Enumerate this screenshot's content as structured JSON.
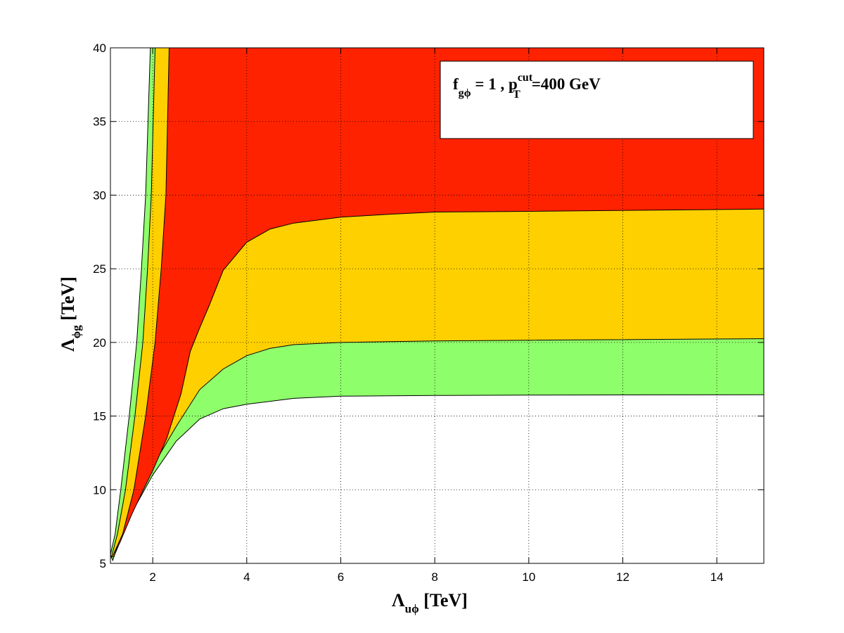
{
  "chart_data": {
    "type": "area",
    "title": "",
    "xlabel": {
      "main": "Λ",
      "sub": "uϕ",
      "unit": " [TeV]"
    },
    "ylabel": {
      "main": "Λ",
      "sub": "ϕg",
      "unit": " [TeV]"
    },
    "xlim": [
      1.1,
      15
    ],
    "ylim": [
      5,
      40
    ],
    "x_ticks": [
      2,
      4,
      6,
      8,
      10,
      12,
      14
    ],
    "y_ticks": [
      5,
      10,
      15,
      20,
      25,
      30,
      35,
      40
    ],
    "grid": "dotted",
    "annotation": {
      "f": "f",
      "f_sub": "gϕ",
      "eq": " = 1 , p",
      "p_sup": "cut",
      "p_sub": "T",
      "rest": "=400 GeV",
      "placement": "top-right"
    },
    "colors": {
      "red": "#ff2200",
      "yellow": "#ffd000",
      "green": "#8eff6a",
      "background": "#ffffff",
      "outline": "#000000"
    },
    "series": [
      {
        "color": "#8eff6a",
        "fills_above": true,
        "boundary": [
          [
            1.95,
            40
          ],
          [
            1.85,
            30
          ],
          [
            1.76,
            25
          ],
          [
            1.66,
            20
          ],
          [
            1.5,
            15
          ],
          [
            1.32,
            10
          ],
          [
            1.2,
            7
          ],
          [
            1.1,
            5.6
          ],
          [
            1.15,
            5.2
          ],
          [
            1.3,
            6.6
          ],
          [
            1.6,
            8.7
          ],
          [
            2.0,
            11.0
          ],
          [
            2.5,
            13.3
          ],
          [
            3.0,
            14.8
          ],
          [
            3.5,
            15.5
          ],
          [
            4.0,
            15.8
          ],
          [
            5.0,
            16.2
          ],
          [
            6.0,
            16.35
          ],
          [
            8.0,
            16.4
          ],
          [
            10,
            16.42
          ],
          [
            15,
            16.45
          ]
        ]
      },
      {
        "color": "#ffd000",
        "fills_above": true,
        "boundary": [
          [
            2.05,
            40
          ],
          [
            1.97,
            30
          ],
          [
            1.89,
            25
          ],
          [
            1.79,
            20
          ],
          [
            1.62,
            15
          ],
          [
            1.42,
            10
          ],
          [
            1.25,
            7
          ],
          [
            1.12,
            5.4
          ],
          [
            1.18,
            5.5
          ],
          [
            1.4,
            7.2
          ],
          [
            1.7,
            9.5
          ],
          [
            2.0,
            11.6
          ],
          [
            2.5,
            14.3
          ],
          [
            3.0,
            16.8
          ],
          [
            3.5,
            18.2
          ],
          [
            4.0,
            19.1
          ],
          [
            4.5,
            19.6
          ],
          [
            5.0,
            19.85
          ],
          [
            6.0,
            20.0
          ],
          [
            8.0,
            20.1
          ],
          [
            10,
            20.15
          ],
          [
            15,
            20.25
          ]
        ]
      },
      {
        "color": "#ff2200",
        "fills_above": true,
        "boundary": [
          [
            2.35,
            40
          ],
          [
            2.28,
            30
          ],
          [
            2.18,
            25
          ],
          [
            2.05,
            20
          ],
          [
            1.85,
            15
          ],
          [
            1.6,
            10
          ],
          [
            1.36,
            7
          ],
          [
            1.15,
            5.5
          ],
          [
            1.3,
            6.4
          ],
          [
            1.55,
            8.3
          ],
          [
            1.8,
            10.0
          ],
          [
            2.0,
            11.3
          ],
          [
            2.3,
            13.5
          ],
          [
            2.6,
            16.5
          ],
          [
            2.8,
            19.4
          ],
          [
            3.0,
            21.0
          ],
          [
            3.2,
            22.5
          ],
          [
            3.5,
            24.9
          ],
          [
            4.0,
            26.8
          ],
          [
            4.5,
            27.7
          ],
          [
            5.0,
            28.1
          ],
          [
            6.0,
            28.5
          ],
          [
            7.0,
            28.7
          ],
          [
            8.0,
            28.85
          ],
          [
            10,
            28.9
          ],
          [
            15,
            29.05
          ]
        ]
      }
    ]
  }
}
